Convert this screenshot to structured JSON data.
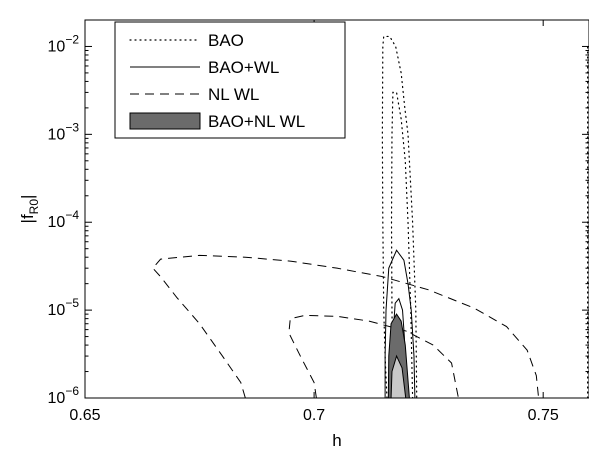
{
  "chart_data": {
    "type": "line",
    "title": "",
    "xlabel": "h",
    "ylabel_base": "|f",
    "ylabel_sub": "R0",
    "ylabel_close": "|",
    "xlim": [
      0.65,
      0.76
    ],
    "ylim": [
      1e-06,
      0.02
    ],
    "y_scale": "log",
    "grid": false,
    "x_ticks": [
      {
        "value": 0.65,
        "label": "0.65"
      },
      {
        "value": 0.7,
        "label": "0.7"
      },
      {
        "value": 0.75,
        "label": "0.75"
      }
    ],
    "y_ticks": [
      {
        "value": 1e-06,
        "base": "10",
        "exp": "−6"
      },
      {
        "value": 1e-05,
        "base": "10",
        "exp": "−5"
      },
      {
        "value": 0.0001,
        "base": "10",
        "exp": "−4"
      },
      {
        "value": 0.001,
        "base": "10",
        "exp": "−3"
      },
      {
        "value": 0.01,
        "base": "10",
        "exp": "−2"
      }
    ],
    "legend": {
      "position": "top-left",
      "entries": [
        {
          "label": "BAO",
          "style": "dotted"
        },
        {
          "label": "BAO+WL",
          "style": "solid"
        },
        {
          "label": "NL WL",
          "style": "dashed"
        },
        {
          "label": "BAO+NL WL",
          "style": "filled"
        }
      ]
    },
    "series": [
      {
        "name": "BAO",
        "style": "dotted",
        "contours": [
          {
            "points": [
              [
                0.7159,
                1e-06
              ],
              [
                0.7155,
                3e-06
              ],
              [
                0.7152,
                1e-05
              ],
              [
                0.715,
                0.0001
              ],
              [
                0.7149,
                0.001
              ],
              [
                0.715,
                0.01
              ],
              [
                0.7152,
                0.013
              ],
              [
                0.7165,
                0.013
              ],
              [
                0.7178,
                0.01
              ],
              [
                0.719,
                0.005
              ],
              [
                0.7198,
                0.002
              ],
              [
                0.7205,
                0.001
              ],
              [
                0.7215,
                0.0001
              ],
              [
                0.7222,
                1e-05
              ],
              [
                0.7224,
                1e-06
              ]
            ]
          },
          {
            "points": [
              [
                0.7172,
                1e-06
              ],
              [
                0.717,
                1e-05
              ],
              [
                0.7169,
                0.0001
              ],
              [
                0.717,
                0.001
              ],
              [
                0.7172,
                0.003
              ],
              [
                0.718,
                0.003
              ],
              [
                0.719,
                0.0015
              ],
              [
                0.7199,
                0.0005
              ],
              [
                0.7205,
                0.0001
              ],
              [
                0.7211,
                1e-05
              ],
              [
                0.7215,
                1e-06
              ]
            ]
          },
          {
            "points": [
              [
                0.7597,
                1e-06
              ],
              [
                0.7597,
                0.01
              ]
            ]
          }
        ]
      },
      {
        "name": "BAO+WL",
        "style": "solid",
        "contours": [
          {
            "points": [
              [
                0.7155,
                1e-06
              ],
              [
                0.7155,
                3e-06
              ],
              [
                0.7157,
                1e-05
              ],
              [
                0.7163,
                3e-05
              ],
              [
                0.718,
                4.8e-05
              ],
              [
                0.7196,
                3.7e-05
              ],
              [
                0.7205,
                2e-05
              ],
              [
                0.7212,
                1e-05
              ],
              [
                0.7218,
                3e-06
              ],
              [
                0.722,
                1e-06
              ]
            ]
          },
          {
            "points": [
              [
                0.7172,
                1e-06
              ],
              [
                0.7172,
                5e-06
              ],
              [
                0.7177,
                1.2e-05
              ],
              [
                0.7185,
                1.35e-05
              ],
              [
                0.7193,
                1e-05
              ],
              [
                0.7197,
                5e-06
              ],
              [
                0.7203,
                1e-06
              ]
            ]
          }
        ]
      },
      {
        "name": "NL WL",
        "style": "dashed",
        "contours": [
          {
            "points": [
              [
                0.685,
                1e-06
              ],
              [
                0.684,
                1.5e-06
              ],
              [
                0.68,
                3e-06
              ],
              [
                0.675,
                7e-06
              ],
              [
                0.67,
                1.4e-05
              ],
              [
                0.6665,
                2.4e-05
              ],
              [
                0.6648,
                3e-05
              ],
              [
                0.6665,
                3.8e-05
              ],
              [
                0.675,
                4.2e-05
              ],
              [
                0.685,
                4e-05
              ],
              [
                0.695,
                3.6e-05
              ],
              [
                0.705,
                3e-05
              ],
              [
                0.715,
                2.4e-05
              ],
              [
                0.725,
                1.7e-05
              ],
              [
                0.735,
                1.05e-05
              ],
              [
                0.742,
                6.5e-06
              ],
              [
                0.7465,
                3.5e-06
              ],
              [
                0.7485,
                1.8e-06
              ],
              [
                0.749,
                1e-06
              ]
            ]
          },
          {
            "points": [
              [
                0.7005,
                1e-06
              ],
              [
                0.7,
                1.5e-06
              ],
              [
                0.697,
                3e-06
              ],
              [
                0.6945,
                5.5e-06
              ],
              [
                0.6948,
                8e-06
              ],
              [
                0.698,
                8.7e-06
              ],
              [
                0.705,
                8.5e-06
              ],
              [
                0.712,
                7.5e-06
              ],
              [
                0.72,
                5.8e-06
              ],
              [
                0.726,
                4e-06
              ],
              [
                0.73,
                2.5e-06
              ],
              [
                0.7315,
                1e-06
              ]
            ]
          }
        ]
      },
      {
        "name": "BAO+NL WL",
        "style": "filled",
        "outer": [
          [
            0.7162,
            1e-06
          ],
          [
            0.7163,
            3e-06
          ],
          [
            0.7168,
            7e-06
          ],
          [
            0.718,
            9e-06
          ],
          [
            0.719,
            7.5e-06
          ],
          [
            0.7199,
            4e-06
          ],
          [
            0.7208,
            1e-06
          ]
        ],
        "inner": [
          [
            0.7168,
            1e-06
          ],
          [
            0.717,
            2e-06
          ],
          [
            0.718,
            3e-06
          ],
          [
            0.7192,
            2.2e-06
          ],
          [
            0.72,
            1e-06
          ]
        ]
      }
    ]
  }
}
